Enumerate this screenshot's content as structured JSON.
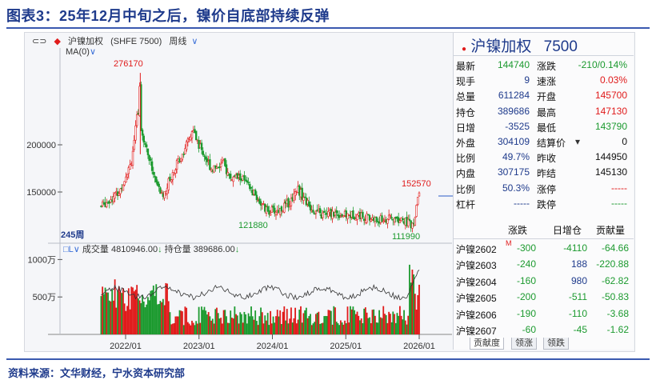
{
  "page": {
    "title": "图表3：25年12月中旬之后，镍价自底部持续反弹",
    "source": "资料来源：文华财经，宁水资本研究部"
  },
  "toolbar": {
    "item_label": "沪镍加权",
    "code": "(SHFE 7500)",
    "period": "周线",
    "ma_label": "MA(0)",
    "period_count": "245周"
  },
  "volume_header": {
    "vol_label": "成交量",
    "vol_value": "4810946.00",
    "oi_label": "持仓量",
    "oi_value": "389686.00"
  },
  "colors": {
    "up": "#e01b1b",
    "down": "#1c9a2f",
    "title": "#1f3b8c"
  },
  "chart_data": {
    "type": "candlestick",
    "title": "",
    "x_ticks": [
      "2022/01",
      "2023/01",
      "2024/01",
      "2025/01",
      "2026/01"
    ],
    "price_axis": {
      "ticks": [
        150000,
        200000
      ],
      "tick_labels": [
        "150000",
        "200000"
      ]
    },
    "volume_axis": {
      "ticks": [
        500,
        1000
      ],
      "tick_labels": [
        "500万",
        "1000万"
      ]
    },
    "annotations": [
      {
        "text": "276170",
        "color": "red",
        "kind": "high"
      },
      {
        "text": "121880",
        "color": "green",
        "kind": "low"
      },
      {
        "text": "111990",
        "color": "green",
        "kind": "low"
      },
      {
        "text": "152570",
        "color": "red",
        "kind": "high"
      }
    ],
    "price_anchors": [
      {
        "x": "2021/09",
        "close": 135000
      },
      {
        "x": "2021/12",
        "close": 150000
      },
      {
        "x": "2022/02",
        "close": 185000
      },
      {
        "x": "2022/03",
        "close": 235000
      },
      {
        "x": "2022/04",
        "close": 205000
      },
      {
        "x": "2022/06",
        "close": 160000
      },
      {
        "x": "2022/07",
        "close": 145000
      },
      {
        "x": "2022/09",
        "close": 175000
      },
      {
        "x": "2022/11",
        "close": 200000
      },
      {
        "x": "2022/12",
        "close": 215000
      },
      {
        "x": "2023/01",
        "close": 200000
      },
      {
        "x": "2023/03",
        "close": 175000
      },
      {
        "x": "2023/05",
        "close": 180000
      },
      {
        "x": "2023/06",
        "close": 165000
      },
      {
        "x": "2023/08",
        "close": 165000
      },
      {
        "x": "2023/10",
        "close": 148000
      },
      {
        "x": "2023/12",
        "close": 130000
      },
      {
        "x": "2024/02",
        "close": 130000
      },
      {
        "x": "2024/04",
        "close": 140000
      },
      {
        "x": "2024/05",
        "close": 155000
      },
      {
        "x": "2024/07",
        "close": 135000
      },
      {
        "x": "2024/09",
        "close": 125000
      },
      {
        "x": "2024/11",
        "close": 128000
      },
      {
        "x": "2025/01",
        "close": 125000
      },
      {
        "x": "2025/03",
        "close": 126000
      },
      {
        "x": "2025/06",
        "close": 120000
      },
      {
        "x": "2025/09",
        "close": 122000
      },
      {
        "x": "2025/11",
        "close": 118000
      },
      {
        "x": "2025/12",
        "close": 113000
      },
      {
        "x": "2026/01",
        "close": 150000
      }
    ],
    "volume_note": "weekly volume bars, red/green, spike at end of 2025",
    "grid": false
  },
  "quote": {
    "name": "沪镍加权",
    "code": "7500",
    "rows": [
      {
        "l1": "最新",
        "v1": "144740",
        "c1": "green",
        "l2": "涨跌",
        "v2": "-210/0.14%",
        "c2": "green"
      },
      {
        "l1": "现手",
        "v1": "9",
        "c1": "blue",
        "l2": "速涨",
        "v2": "0.03%",
        "c2": "red"
      },
      {
        "l1": "总量",
        "v1": "611284",
        "c1": "blue",
        "l2": "开盘",
        "v2": "145700",
        "c2": "red"
      },
      {
        "l1": "持仓",
        "v1": "389686",
        "c1": "blue",
        "l2": "最高",
        "v2": "147130",
        "c2": "red"
      },
      {
        "l1": "日增",
        "v1": "-3525",
        "c1": "blue",
        "l2": "最低",
        "v2": "143790",
        "c2": "green"
      },
      {
        "l1": "外盘",
        "v1": "304109",
        "c1": "blue",
        "l2": "结算价",
        "v2": "0",
        "c2": "blk"
      },
      {
        "l1": "比例",
        "v1": "49.7%",
        "c1": "blue",
        "l2": "昨收",
        "v2": "144950",
        "c2": "blk"
      },
      {
        "l1": "内盘",
        "v1": "307175",
        "c1": "blue",
        "l2": "昨结",
        "v2": "145130",
        "c2": "blk"
      },
      {
        "l1": "比例",
        "v1": "50.3%",
        "c1": "blue",
        "l2": "涨停",
        "v2": "-----",
        "c2": "red"
      },
      {
        "l1": "杠杆",
        "v1": "-----",
        "c1": "blue",
        "l2": "跌停",
        "v2": "-----",
        "c2": "green"
      }
    ],
    "table_headers": [
      "",
      "涨跌",
      "日增仓",
      "贡献量"
    ],
    "contracts": [
      {
        "name": "沪镍2602",
        "chg": "-300",
        "oi": "-4110",
        "contrib": "-64.66",
        "c_oi": "green",
        "marker": "M"
      },
      {
        "name": "沪镍2603",
        "chg": "-240",
        "oi": "188",
        "contrib": "-220.88",
        "c_oi": "blue",
        "marker": ""
      },
      {
        "name": "沪镍2604",
        "chg": "-160",
        "oi": "980",
        "contrib": "-62.82",
        "c_oi": "blue",
        "marker": ""
      },
      {
        "name": "沪镍2605",
        "chg": "-200",
        "oi": "-511",
        "contrib": "-50.83",
        "c_oi": "green",
        "marker": ""
      },
      {
        "name": "沪镍2606",
        "chg": "-190",
        "oi": "-110",
        "contrib": "-3.68",
        "c_oi": "green",
        "marker": ""
      },
      {
        "name": "沪镍2607",
        "chg": "-60",
        "oi": "-45",
        "contrib": "-1.62",
        "c_oi": "green",
        "marker": ""
      }
    ],
    "tabs": [
      "贡献度",
      "领涨",
      "领跌"
    ]
  }
}
